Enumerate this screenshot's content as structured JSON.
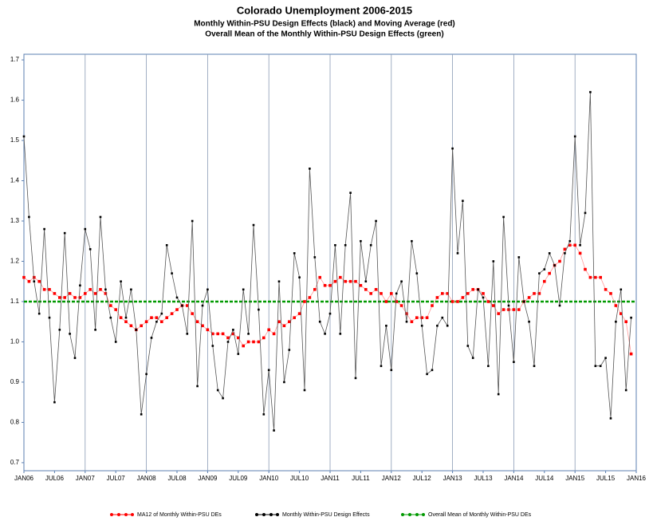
{
  "chart_data": {
    "type": "line",
    "title": "Colorado Unemployment 2006-2015",
    "subtitle": "Monthly Within-PSU  Design Effects (black) and Moving Average (red)",
    "subtitle2": "Overall Mean of the Monthly Within-PSU Design Effects (green)",
    "x": [
      0,
      1,
      2,
      3,
      4,
      5,
      6,
      7,
      8,
      9,
      10,
      11,
      12,
      13,
      14,
      15,
      16,
      17,
      18,
      19,
      20,
      21,
      22,
      23,
      24,
      25,
      26,
      27,
      28,
      29,
      30,
      31,
      32,
      33,
      34,
      35,
      36,
      37,
      38,
      39,
      40,
      41,
      42,
      43,
      44,
      45,
      46,
      47,
      48,
      49,
      50,
      51,
      52,
      53,
      54,
      55,
      56,
      57,
      58,
      59,
      60,
      61,
      62,
      63,
      64,
      65,
      66,
      67,
      68,
      69,
      70,
      71,
      72,
      73,
      74,
      75,
      76,
      77,
      78,
      79,
      80,
      81,
      82,
      83,
      84,
      85,
      86,
      87,
      88,
      89,
      90,
      91,
      92,
      93,
      94,
      95,
      96,
      97,
      98,
      99,
      100,
      101,
      102,
      103,
      104,
      105,
      106,
      107,
      108,
      109,
      110,
      111,
      112,
      113,
      114,
      115,
      116,
      117,
      118,
      119
    ],
    "xlim": [
      0,
      120
    ],
    "xticks": [
      {
        "value": 0,
        "label": "JAN06"
      },
      {
        "value": 6,
        "label": "JUL06"
      },
      {
        "value": 12,
        "label": "JAN07"
      },
      {
        "value": 18,
        "label": "JUL07"
      },
      {
        "value": 24,
        "label": "JAN08"
      },
      {
        "value": 30,
        "label": "JUL08"
      },
      {
        "value": 36,
        "label": "JAN09"
      },
      {
        "value": 42,
        "label": "JUL09"
      },
      {
        "value": 48,
        "label": "JAN10"
      },
      {
        "value": 54,
        "label": "JUL10"
      },
      {
        "value": 60,
        "label": "JAN11"
      },
      {
        "value": 66,
        "label": "JUL11"
      },
      {
        "value": 72,
        "label": "JAN12"
      },
      {
        "value": 78,
        "label": "JUL12"
      },
      {
        "value": 84,
        "label": "JAN13"
      },
      {
        "value": 90,
        "label": "JUL13"
      },
      {
        "value": 96,
        "label": "JAN14"
      },
      {
        "value": 102,
        "label": "JUL14"
      },
      {
        "value": 108,
        "label": "JAN15"
      },
      {
        "value": 114,
        "label": "JUL15"
      },
      {
        "value": 120,
        "label": "JAN16"
      }
    ],
    "ylim": [
      0.68,
      1.714
    ],
    "yticks": [
      0.7,
      0.8,
      0.9,
      {
        "value": 1,
        "label": "1.0"
      },
      1.1,
      1.2,
      1.3,
      1.4,
      1.5,
      1.6,
      1.7
    ],
    "series": [
      {
        "name": "MA12 of Monthly Within-PSU DEs",
        "color": "#ff0000",
        "values": [
          1.16,
          1.15,
          1.16,
          1.15,
          1.13,
          1.13,
          1.12,
          1.11,
          1.11,
          1.12,
          1.11,
          1.11,
          1.12,
          1.13,
          1.12,
          1.13,
          1.12,
          1.09,
          1.08,
          1.06,
          1.05,
          1.04,
          1.03,
          1.04,
          1.05,
          1.06,
          1.06,
          1.05,
          1.06,
          1.07,
          1.08,
          1.09,
          1.09,
          1.07,
          1.05,
          1.04,
          1.03,
          1.02,
          1.02,
          1.02,
          1.01,
          1.02,
          1.01,
          0.99,
          1.0,
          1.0,
          1.0,
          1.01,
          1.03,
          1.02,
          1.05,
          1.04,
          1.05,
          1.06,
          1.07,
          1.1,
          1.11,
          1.13,
          1.16,
          1.14,
          1.14,
          1.15,
          1.16,
          1.15,
          1.15,
          1.15,
          1.14,
          1.13,
          1.12,
          1.13,
          1.12,
          1.1,
          1.12,
          1.1,
          1.09,
          1.07,
          1.05,
          1.06,
          1.06,
          1.06,
          1.09,
          1.11,
          1.12,
          1.12,
          1.1,
          1.1,
          1.11,
          1.12,
          1.13,
          1.13,
          1.12,
          1.1,
          1.09,
          1.07,
          1.08,
          1.08,
          1.08,
          1.08,
          1.1,
          1.11,
          1.12,
          1.12,
          1.15,
          1.17,
          1.19,
          1.2,
          1.23,
          1.24,
          1.24,
          1.22,
          1.18,
          1.16,
          1.16,
          1.16,
          1.13,
          1.12,
          1.09,
          1.07,
          1.05,
          0.97
        ]
      },
      {
        "name": "Monthly Within-PSU Design Effects",
        "color": "#000000",
        "values": [
          1.51,
          1.31,
          1.15,
          1.07,
          1.28,
          1.06,
          0.85,
          1.03,
          1.27,
          1.02,
          0.96,
          1.14,
          1.28,
          1.23,
          1.03,
          1.31,
          1.13,
          1.06,
          1.0,
          1.15,
          1.06,
          1.13,
          1.03,
          0.82,
          0.92,
          1.01,
          1.05,
          1.07,
          1.24,
          1.17,
          1.11,
          1.09,
          1.02,
          1.3,
          0.89,
          1.09,
          1.13,
          0.99,
          0.88,
          0.86,
          1.0,
          1.03,
          0.97,
          1.13,
          1.02,
          1.29,
          1.08,
          0.82,
          0.93,
          0.78,
          1.15,
          0.9,
          0.98,
          1.22,
          1.16,
          0.88,
          1.43,
          1.21,
          1.05,
          1.02,
          1.07,
          1.24,
          1.02,
          1.24,
          1.37,
          0.91,
          1.25,
          1.15,
          1.24,
          1.3,
          0.94,
          1.04,
          0.93,
          1.12,
          1.15,
          1.05,
          1.25,
          1.17,
          1.04,
          0.92,
          0.93,
          1.04,
          1.06,
          1.04,
          1.48,
          1.22,
          1.35,
          0.99,
          0.96,
          1.13,
          1.11,
          0.94,
          1.2,
          0.87,
          1.31,
          1.09,
          0.95,
          1.21,
          1.1,
          1.05,
          0.94,
          1.17,
          1.18,
          1.22,
          1.19,
          1.09,
          1.22,
          1.25,
          1.51,
          1.24,
          1.32,
          1.62,
          0.94,
          0.94,
          0.96,
          0.81,
          1.05,
          1.13,
          0.88,
          1.06
        ]
      }
    ],
    "reference_line": {
      "name": "Overall Mean of Monthly Within-PSU DEs",
      "color": "#009900",
      "value": 1.1
    },
    "grid": true
  }
}
